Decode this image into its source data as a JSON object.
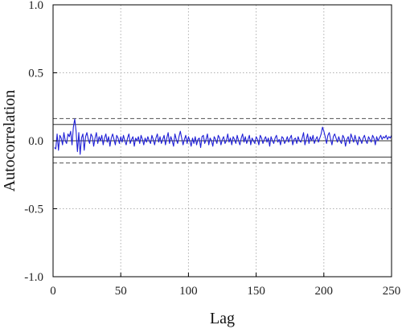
{
  "chart_data": {
    "type": "line",
    "title": "",
    "xlabel": "Lag",
    "ylabel": "Autocorrelation",
    "xlim": [
      0,
      250
    ],
    "ylim": [
      -1.0,
      1.0
    ],
    "xticks": [
      "0",
      "50",
      "100",
      "150",
      "200",
      "250"
    ],
    "yticks": [
      "1.0",
      "0.5",
      "0.0",
      "-0.5",
      "-1.0"
    ],
    "grid": true,
    "reference_lines": {
      "solid": [
        0.0,
        0.12,
        -0.12
      ],
      "dashed": [
        0.163,
        -0.163
      ]
    },
    "series": [
      {
        "color": "#1f1fd6",
        "x_start": 1,
        "x_step": 1,
        "values": [
          -0.05,
          -0.06,
          0.05,
          -0.07,
          0.04,
          0.02,
          -0.03,
          0.06,
          0.0,
          -0.02,
          0.05,
          0.03,
          0.07,
          -0.03,
          0.1,
          0.16,
          0.07,
          -0.08,
          0.06,
          -0.1,
          0.02,
          0.05,
          -0.07,
          0.03,
          0.06,
          0.01,
          -0.02,
          0.05,
          0.03,
          -0.04,
          0.02,
          0.06,
          -0.02,
          0.03,
          0.0,
          0.04,
          -0.03,
          0.02,
          0.05,
          -0.01,
          0.03,
          -0.04,
          0.02,
          0.05,
          0.01,
          -0.03,
          0.04,
          0.02,
          -0.02,
          0.03,
          -0.01,
          0.04,
          0.0,
          -0.03,
          0.02,
          0.05,
          -0.02,
          0.01,
          0.03,
          -0.04,
          0.02,
          0.0,
          0.03,
          -0.02,
          0.04,
          0.01,
          -0.03,
          0.02,
          -0.01,
          0.03,
          0.0,
          -0.02,
          0.04,
          0.01,
          -0.03,
          0.02,
          0.05,
          -0.01,
          0.03,
          -0.02,
          0.01,
          0.04,
          -0.03,
          0.02,
          0.06,
          -0.02,
          0.03,
          0.0,
          -0.04,
          0.05,
          0.01,
          -0.02,
          0.03,
          0.07,
          0.02,
          -0.03,
          0.01,
          0.04,
          -0.02,
          0.03,
          0.0,
          -0.04,
          0.02,
          -0.02,
          0.03,
          -0.03,
          0.01,
          0.02,
          -0.05,
          0.03,
          0.04,
          -0.02,
          0.01,
          0.05,
          -0.03,
          0.02,
          0.0,
          -0.04,
          0.03,
          0.01,
          -0.02,
          0.04,
          0.02,
          -0.03,
          0.01,
          0.03,
          -0.02,
          0.0,
          0.05,
          -0.01,
          0.02,
          -0.03,
          0.03,
          0.01,
          -0.02,
          0.04,
          0.0,
          -0.03,
          0.02,
          0.05,
          -0.01,
          0.03,
          -0.02,
          0.01,
          0.04,
          -0.03,
          0.02,
          0.0,
          -0.02,
          0.03,
          0.01,
          -0.03,
          0.04,
          0.02,
          -0.02,
          0.01,
          0.03,
          -0.01,
          0.02,
          -0.04,
          0.03,
          0.0,
          -0.02,
          0.02,
          0.04,
          -0.01,
          0.01,
          -0.03,
          0.03,
          0.02,
          -0.02,
          0.0,
          0.03,
          -0.01,
          0.02,
          0.04,
          -0.03,
          0.01,
          0.02,
          -0.02,
          0.03,
          0.0,
          -0.01,
          0.02,
          0.06,
          -0.03,
          0.01,
          0.05,
          -0.02,
          0.03,
          0.0,
          0.04,
          -0.02,
          0.01,
          0.03,
          -0.01,
          0.02,
          0.05,
          0.1,
          0.07,
          0.03,
          -0.02,
          0.04,
          0.06,
          0.01,
          -0.03,
          0.03,
          0.05,
          0.02,
          -0.01,
          0.03,
          0.0,
          -0.02,
          0.04,
          0.02,
          -0.04,
          0.01,
          0.03,
          -0.02,
          0.05,
          0.02,
          -0.01,
          0.04,
          0.0,
          -0.03,
          0.03,
          0.01,
          -0.02,
          0.02,
          0.04,
          0.0,
          -0.02,
          0.03,
          0.01,
          -0.01,
          0.04,
          0.02,
          -0.03,
          0.03,
          0.0,
          0.02,
          0.04,
          0.01,
          0.03,
          0.02,
          0.04,
          0.01,
          0.03,
          0.02,
          0.04
        ]
      }
    ]
  }
}
